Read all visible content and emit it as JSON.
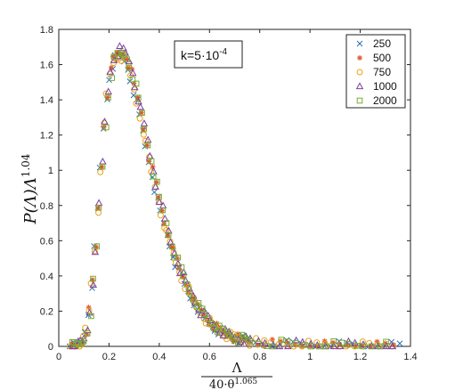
{
  "chart_data": {
    "type": "scatter",
    "ylabel": {
      "base": "P(Λ)Λ",
      "exp": "1.04"
    },
    "xlabel": {
      "numerator": "Λ",
      "denominator_base": "40·θ",
      "denominator_exp": "1.065"
    },
    "annotation": {
      "base": "k=5·10",
      "exp": "-4"
    },
    "xlim": [
      0,
      1.4
    ],
    "ylim": [
      0,
      1.8
    ],
    "x_ticks": [
      "0",
      "0.2",
      "0.4",
      "0.6",
      "0.8",
      "1",
      "1.2",
      "1.4"
    ],
    "y_ticks": [
      "0",
      "0.2",
      "0.4",
      "0.6",
      "0.8",
      "1",
      "1.2",
      "1.4",
      "1.6",
      "1.8"
    ],
    "legend_position": "top-right",
    "grid": false,
    "series": [
      {
        "name": "250",
        "marker": "x",
        "color": "#2b6fb3",
        "x_offset": -0.004,
        "y_offset": -0.02,
        "x_end": 1.37
      },
      {
        "name": "500",
        "marker": "asterisk",
        "color": "#e0532a",
        "x_offset": 0.0,
        "y_offset": 0.01,
        "x_end": 1.35
      },
      {
        "name": "750",
        "marker": "circle",
        "color": "#e8a317",
        "x_offset": -0.003,
        "y_offset": -0.01,
        "x_end": 1.35
      },
      {
        "name": "1000",
        "marker": "triangle",
        "color": "#7b3fa0",
        "x_offset": 0.002,
        "y_offset": 0.02,
        "x_end": 1.34
      },
      {
        "name": "2000",
        "marker": "square",
        "color": "#77ac30",
        "x_offset": 0.004,
        "y_offset": 0.0,
        "x_end": 1.33
      }
    ],
    "curve": {
      "x": [
        0.05,
        0.07,
        0.09,
        0.1,
        0.11,
        0.12,
        0.13,
        0.14,
        0.15,
        0.16,
        0.17,
        0.18,
        0.19,
        0.2,
        0.21,
        0.22,
        0.23,
        0.24,
        0.25,
        0.26,
        0.27,
        0.28,
        0.29,
        0.3,
        0.32,
        0.34,
        0.36,
        0.38,
        0.4,
        0.42,
        0.44,
        0.46,
        0.48,
        0.5,
        0.52,
        0.55,
        0.58,
        0.6,
        0.63,
        0.66,
        0.7,
        0.75,
        0.8,
        0.85,
        0.9,
        0.95,
        1.0,
        1.1,
        1.2,
        1.3,
        1.37
      ],
      "y": [
        0.0,
        0.0,
        0.02,
        0.04,
        0.09,
        0.17,
        0.3,
        0.45,
        0.62,
        0.82,
        1.02,
        1.22,
        1.38,
        1.5,
        1.58,
        1.63,
        1.65,
        1.66,
        1.66,
        1.65,
        1.63,
        1.59,
        1.54,
        1.48,
        1.36,
        1.22,
        1.08,
        0.95,
        0.82,
        0.71,
        0.61,
        0.52,
        0.44,
        0.37,
        0.31,
        0.23,
        0.17,
        0.14,
        0.1,
        0.075,
        0.05,
        0.03,
        0.02,
        0.015,
        0.012,
        0.009,
        0.007,
        0.005,
        0.003,
        0.002,
        0.0
      ]
    }
  }
}
